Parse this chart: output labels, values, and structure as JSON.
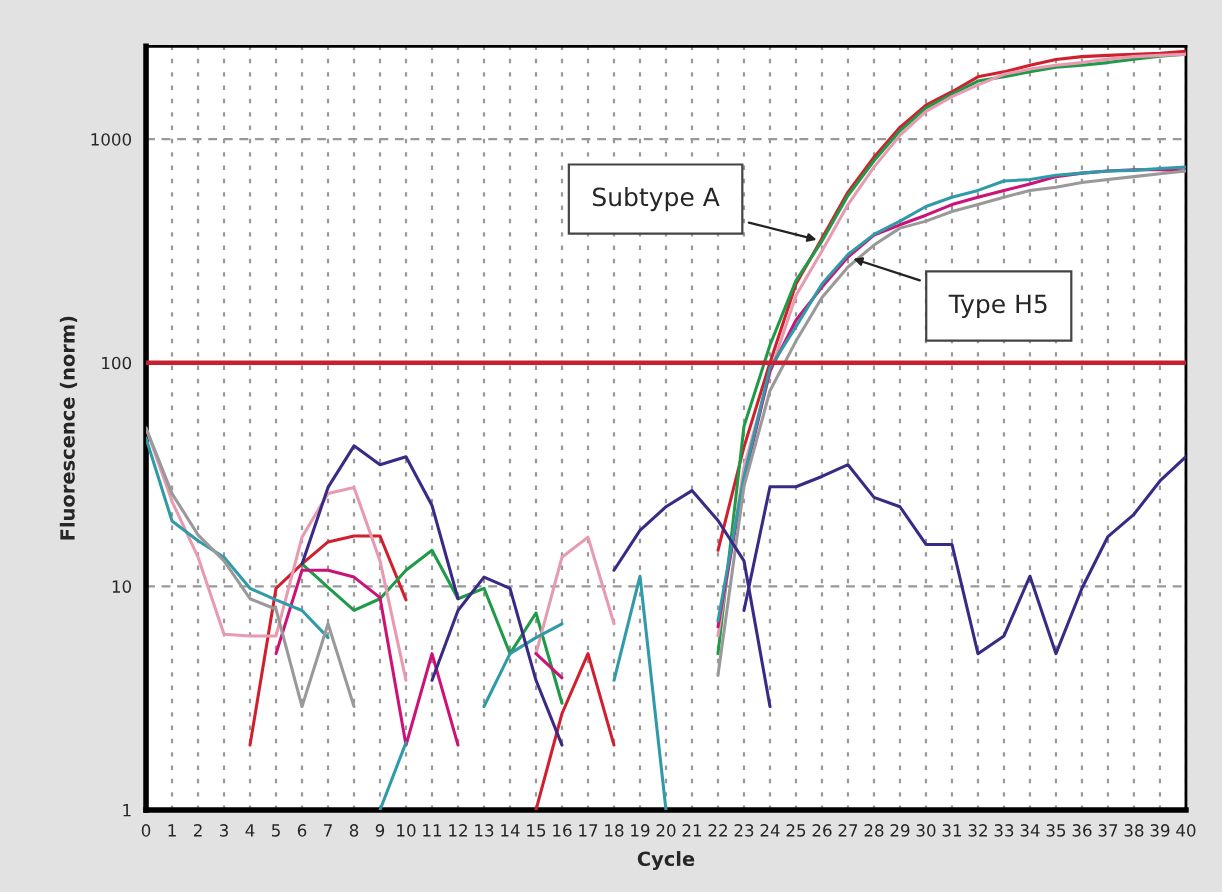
{
  "chart_data": {
    "type": "line",
    "xlabel": "Cycle",
    "ylabel": "Fluorescence (norm)",
    "log": "y",
    "x": [
      0,
      1,
      2,
      3,
      4,
      5,
      6,
      7,
      8,
      9,
      10,
      11,
      12,
      13,
      14,
      15,
      16,
      17,
      18,
      19,
      20,
      21,
      22,
      23,
      24,
      25,
      26,
      27,
      28,
      29,
      30,
      31,
      32,
      33,
      34,
      35,
      36,
      37,
      38,
      39,
      40
    ],
    "xlim": [
      0,
      40
    ],
    "xticks": [
      0,
      1,
      2,
      3,
      4,
      5,
      6,
      7,
      8,
      9,
      10,
      11,
      12,
      13,
      14,
      15,
      16,
      17,
      18,
      19,
      20,
      21,
      22,
      23,
      24,
      25,
      26,
      27,
      28,
      29,
      30,
      31,
      32,
      33,
      34,
      35,
      36,
      37,
      38,
      39,
      40
    ],
    "ylim": [
      1,
      2600
    ],
    "yticks": [
      1,
      10,
      100,
      1000
    ],
    "grid": true,
    "marker": "none",
    "line_style": "solid",
    "ref_lines": [
      {
        "axis": "y",
        "value": 100,
        "color": "#c8202e"
      }
    ],
    "annotations": [
      {
        "text": "Subtype A",
        "x": 26,
        "y": 350
      },
      {
        "text": "Type H5",
        "x": 27,
        "y": 297
      }
    ],
    "series": [
      {
        "color": "#d0202e",
        "values": [
          null,
          null,
          null,
          null,
          1.95,
          9.8,
          12.6,
          15.8,
          16.8,
          16.8,
          8.7,
          null,
          null,
          null,
          null,
          1,
          2.7,
          5,
          1.95,
          null,
          null,
          null,
          14.5,
          42,
          100,
          225,
          360,
          580,
          830,
          1130,
          1420,
          1630,
          1900,
          2000,
          2140,
          2270,
          2340,
          2370,
          2400,
          2420,
          2470
        ]
      },
      {
        "color": "#1f9a48",
        "values": [
          null,
          null,
          null,
          null,
          null,
          null,
          12.6,
          9.9,
          7.8,
          8.8,
          11.8,
          14.5,
          8.8,
          9.8,
          5,
          7.6,
          3.0,
          null,
          null,
          null,
          null,
          null,
          5,
          52,
          120,
          233,
          350,
          560,
          800,
          1090,
          1380,
          1590,
          1820,
          1900,
          2000,
          2100,
          2140,
          2200,
          2280,
          2350,
          2400
        ]
      },
      {
        "color": "#e89ab0",
        "values": [
          51,
          24,
          13.5,
          6.1,
          6,
          6,
          16.6,
          26,
          27.7,
          13,
          3.8,
          null,
          null,
          null,
          null,
          5,
          13.5,
          16.6,
          6.8,
          null,
          null,
          null,
          6,
          34,
          90,
          200,
          316,
          510,
          750,
          1040,
          1330,
          1550,
          1750,
          1950,
          2060,
          2140,
          2200,
          2280,
          2340,
          2370,
          2400
        ]
      },
      {
        "color": "#cc1177",
        "values": [
          null,
          null,
          null,
          null,
          null,
          5,
          11.8,
          11.8,
          11,
          8.9,
          1.95,
          5,
          1.95,
          null,
          null,
          5,
          3.9,
          null,
          null,
          null,
          null,
          null,
          6.6,
          30,
          92,
          155,
          218,
          297,
          372,
          414,
          457,
          510,
          550,
          590,
          630,
          680,
          705,
          720,
          730,
          730,
          720
        ]
      },
      {
        "color": "#2f9aa8",
        "values": [
          46,
          19.6,
          16,
          13.5,
          9.8,
          8.7,
          7.8,
          5.9,
          null,
          1,
          2,
          null,
          null,
          2.9,
          5,
          5.9,
          6.8,
          null,
          3.8,
          11.1,
          1,
          null,
          7,
          31,
          95,
          145,
          225,
          305,
          375,
          430,
          500,
          550,
          590,
          650,
          660,
          690,
          705,
          720,
          725,
          740,
          750
        ]
      },
      {
        "color": "#999999",
        "values": [
          51,
          26,
          17,
          13,
          8.8,
          7.9,
          2.9,
          6.8,
          2.9,
          null,
          null,
          null,
          null,
          null,
          null,
          null,
          null,
          null,
          null,
          null,
          null,
          null,
          4,
          28,
          75,
          125,
          196,
          268,
          336,
          400,
          430,
          475,
          510,
          550,
          590,
          610,
          640,
          660,
          680,
          700,
          720
        ]
      },
      {
        "color": "#3b2a85",
        "values": [
          null,
          null,
          null,
          null,
          null,
          null,
          12.6,
          27.7,
          42.5,
          35,
          38,
          23,
          8.8,
          null,
          null,
          null,
          null,
          null,
          11.8,
          17.8,
          22.7,
          26.8,
          19.7,
          13,
          2.9,
          null,
          null,
          null,
          null,
          null,
          null,
          null,
          null,
          null,
          null,
          null,
          null,
          null,
          null,
          null,
          null
        ]
      },
      {
        "color": "#3b2a85",
        "values": [
          null,
          null,
          null,
          null,
          null,
          null,
          null,
          null,
          null,
          null,
          null,
          3.8,
          7.8,
          11,
          9.8,
          3.8,
          1.95,
          null,
          null,
          null,
          null,
          null,
          null,
          7.8,
          27.9,
          27.9,
          31,
          35,
          25,
          22.7,
          15.4,
          15.4,
          5,
          6,
          11.1,
          5,
          9.8,
          16.7,
          21,
          29.6,
          38
        ]
      }
    ]
  }
}
